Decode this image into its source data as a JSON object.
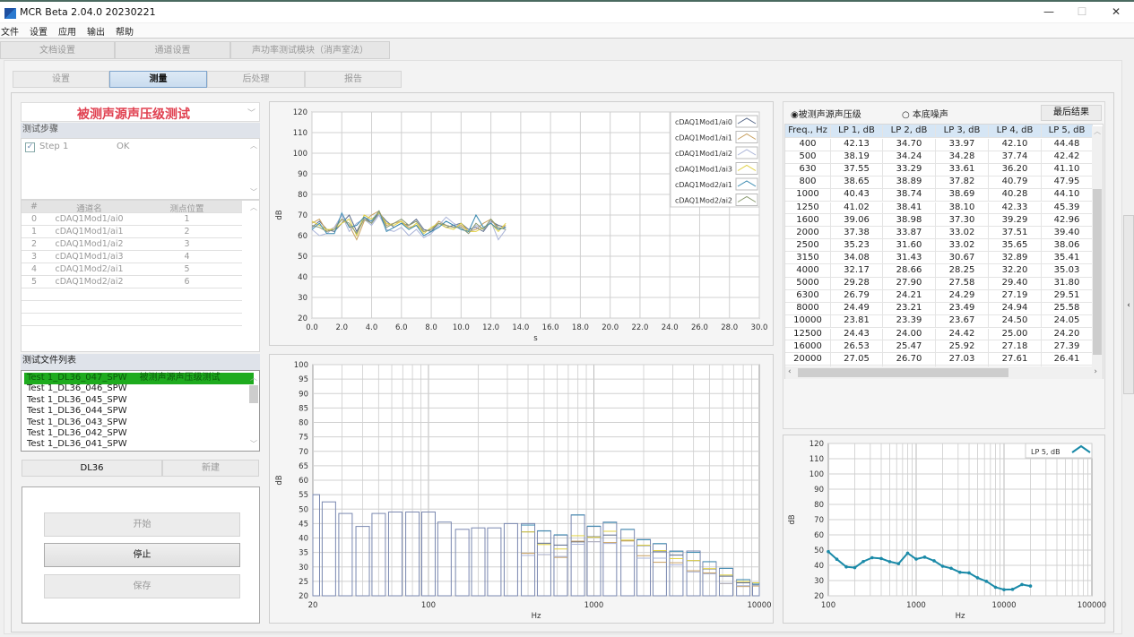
{
  "window": {
    "title": "MCR Beta 2.04.0 20230221",
    "minimize": "—",
    "maximize": "☐",
    "close": "✕"
  },
  "menu": [
    "文件",
    "设置",
    "应用",
    "输出",
    "帮助"
  ],
  "top_tabs": [
    "文档设置",
    "通道设置",
    "声功率测试模块（消声室法）"
  ],
  "sub_tabs": [
    {
      "label": "设置"
    },
    {
      "label": "测量",
      "selected": true
    },
    {
      "label": "后处理"
    },
    {
      "label": "报告"
    }
  ],
  "left": {
    "test_type": "被测声源声压级测试",
    "steps_header": "测试步骤",
    "steps": [
      {
        "name": "Step 1",
        "status": "OK",
        "checked": true
      }
    ],
    "channel_table": {
      "headers": [
        "#",
        "通道名",
        "测点位置"
      ],
      "rows": [
        [
          "0",
          "cDAQ1Mod1/ai0",
          "1"
        ],
        [
          "1",
          "cDAQ1Mod1/ai1",
          "2"
        ],
        [
          "2",
          "cDAQ1Mod1/ai2",
          "3"
        ],
        [
          "3",
          "cDAQ1Mod1/ai3",
          "4"
        ],
        [
          "4",
          "cDAQ1Mod2/ai1",
          "5"
        ],
        [
          "5",
          "cDAQ1Mod2/ai2",
          "6"
        ]
      ]
    },
    "files_header": "测试文件列表",
    "files": [
      {
        "name": "Test 1_DL36_047_SPW",
        "desc": "被测声源声压级测试",
        "selected": true
      },
      {
        "name": "Test 1_DL36_046_SPW"
      },
      {
        "name": "Test 1_DL36_045_SPW"
      },
      {
        "name": "Test 1_DL36_044_SPW"
      },
      {
        "name": "Test 1_DL36_043_SPW"
      },
      {
        "name": "Test 1_DL36_042_SPW"
      },
      {
        "name": "Test 1_DL36_041_SPW"
      }
    ],
    "project_button": "DL36",
    "new_button": "新建",
    "start_button": "开始",
    "stop_button": "停止",
    "save_button": "保存"
  },
  "right": {
    "radio_source": "被测声源声压级",
    "radio_background": "本底噪声",
    "radio_selected": "source",
    "final_button": "最后结果",
    "table": {
      "headers": [
        "Freq., Hz",
        "LP  1, dB",
        "LP  2, dB",
        "LP  3, dB",
        "LP  4, dB",
        "LP  5, dB"
      ],
      "rows": [
        [
          "400",
          "42.13",
          "34.70",
          "33.97",
          "42.10",
          "44.48"
        ],
        [
          "500",
          "38.19",
          "34.24",
          "34.28",
          "37.74",
          "42.42"
        ],
        [
          "630",
          "37.55",
          "33.29",
          "33.61",
          "36.20",
          "41.10"
        ],
        [
          "800",
          "38.65",
          "38.89",
          "37.82",
          "40.79",
          "47.95"
        ],
        [
          "1000",
          "40.43",
          "38.74",
          "38.69",
          "40.28",
          "44.10"
        ],
        [
          "1250",
          "41.02",
          "38.41",
          "38.10",
          "42.33",
          "45.39"
        ],
        [
          "1600",
          "39.06",
          "38.98",
          "37.30",
          "39.29",
          "42.96"
        ],
        [
          "2000",
          "37.38",
          "33.87",
          "33.02",
          "37.51",
          "39.40"
        ],
        [
          "2500",
          "35.23",
          "31.60",
          "33.02",
          "35.65",
          "38.06"
        ],
        [
          "3150",
          "34.08",
          "31.43",
          "30.67",
          "32.89",
          "35.41"
        ],
        [
          "4000",
          "32.17",
          "28.66",
          "28.25",
          "32.20",
          "35.03"
        ],
        [
          "5000",
          "29.28",
          "27.90",
          "27.58",
          "29.40",
          "31.80"
        ],
        [
          "6300",
          "26.79",
          "24.21",
          "24.29",
          "27.19",
          "29.51"
        ],
        [
          "8000",
          "24.49",
          "23.21",
          "23.49",
          "24.94",
          "25.58"
        ],
        [
          "10000",
          "23.81",
          "23.39",
          "23.67",
          "24.50",
          "24.05"
        ],
        [
          "12500",
          "24.43",
          "24.00",
          "24.42",
          "25.00",
          "24.20"
        ],
        [
          "16000",
          "26.53",
          "25.47",
          "25.92",
          "27.18",
          "27.39"
        ],
        [
          "20000",
          "27.05",
          "26.70",
          "27.03",
          "27.61",
          "26.41"
        ]
      ]
    }
  },
  "chart_data": [
    {
      "type": "line",
      "xlabel": "s",
      "ylabel": "dB",
      "xlim": [
        0,
        30
      ],
      "ylim": [
        20,
        120
      ],
      "xticks": [
        "0.0",
        "2.0",
        "4.0",
        "6.0",
        "8.0",
        "10.0",
        "12.0",
        "14.0",
        "16.0",
        "18.0",
        "20.0",
        "22.0",
        "24.0",
        "26.0",
        "28.0",
        "30.0"
      ],
      "yticks": [
        "20",
        "30",
        "40",
        "50",
        "60",
        "70",
        "80",
        "90",
        "100",
        "110",
        "120"
      ],
      "grid": true,
      "legend": "top-right",
      "x": [
        0,
        0.5,
        1,
        1.5,
        2,
        2.5,
        3,
        3.5,
        4,
        4.5,
        5,
        5.5,
        6,
        6.5,
        7,
        7.5,
        8,
        8.5,
        9,
        9.5,
        10,
        10.5,
        11,
        11.5,
        12,
        12.5,
        13
      ],
      "series": [
        {
          "name": "cDAQ1Mod1/ai0",
          "color": "#5a6a8a",
          "values": [
            64,
            67,
            63,
            62,
            66,
            70,
            62,
            69,
            66,
            71,
            67,
            64,
            66,
            65,
            68,
            63,
            62,
            66,
            64,
            65,
            66,
            63,
            64,
            62,
            67,
            65,
            64
          ]
        },
        {
          "name": "cDAQ1Mod1/ai1",
          "color": "#c8a060",
          "values": [
            66,
            68,
            62,
            64,
            68,
            65,
            58,
            67,
            70,
            72,
            65,
            66,
            67,
            64,
            65,
            62,
            63,
            67,
            65,
            64,
            65,
            62,
            63,
            66,
            68,
            63,
            65
          ]
        },
        {
          "name": "cDAQ1Mod1/ai2",
          "color": "#aab4d8",
          "values": [
            63,
            60,
            61,
            64,
            70,
            62,
            66,
            68,
            65,
            70,
            63,
            62,
            64,
            60,
            63,
            59,
            61,
            65,
            69,
            66,
            64,
            61,
            65,
            63,
            67,
            58,
            63
          ]
        },
        {
          "name": "cDAQ1Mod1/ai3",
          "color": "#e0d040",
          "values": [
            67,
            65,
            63,
            63,
            66,
            68,
            60,
            70,
            68,
            71,
            66,
            65,
            67,
            63,
            66,
            61,
            64,
            66,
            64,
            63,
            66,
            62,
            62,
            64,
            66,
            62,
            66
          ]
        },
        {
          "name": "cDAQ1Mod2/ai1",
          "color": "#3a8ab0",
          "values": [
            63,
            66,
            61,
            61,
            71,
            64,
            65,
            69,
            67,
            72,
            62,
            64,
            66,
            63,
            65,
            60,
            62,
            64,
            67,
            65,
            63,
            62,
            70,
            64,
            66,
            63,
            64
          ]
        },
        {
          "name": "cDAQ1Mod2/ai2",
          "color": "#8a9a70",
          "values": [
            65,
            64,
            62,
            63,
            68,
            66,
            61,
            68,
            66,
            72,
            64,
            66,
            68,
            65,
            67,
            62,
            63,
            66,
            65,
            64,
            64,
            61,
            66,
            63,
            68,
            64,
            63
          ]
        }
      ]
    },
    {
      "type": "bar",
      "xlabel": "Hz",
      "ylabel": "dB",
      "xscale": "log",
      "xlim": [
        20,
        10000
      ],
      "ylim": [
        20,
        100
      ],
      "xticks": [
        "20",
        "100",
        "1000",
        "10000"
      ],
      "yticks": [
        "20",
        "25",
        "30",
        "35",
        "40",
        "45",
        "50",
        "55",
        "60",
        "65",
        "70",
        "75",
        "80",
        "85",
        "90",
        "95",
        "100"
      ],
      "grid": true,
      "categories": [
        20,
        25,
        31.5,
        40,
        50,
        63,
        80,
        100,
        125,
        160,
        200,
        250,
        315,
        400,
        500,
        630,
        800,
        1000,
        1250,
        1600,
        2000,
        2500,
        3150,
        4000,
        5000,
        6300,
        8000,
        10000
      ],
      "max": [
        55,
        52.5,
        48.5,
        44,
        48.5,
        49,
        49,
        49,
        45.5,
        43,
        43.5,
        43.5,
        45,
        45,
        42.5,
        41,
        48,
        44,
        45.5,
        43,
        39.5,
        38,
        35.5,
        35.5,
        31.8,
        29.5,
        25.6,
        24.5
      ]
    },
    {
      "type": "line",
      "xlabel": "Hz",
      "ylabel": "dB",
      "xscale": "log",
      "xlim": [
        100,
        100000
      ],
      "ylim": [
        20,
        120
      ],
      "xticks": [
        "100",
        "1000",
        "10000",
        "100000"
      ],
      "yticks": [
        "20",
        "30",
        "40",
        "50",
        "60",
        "70",
        "80",
        "90",
        "100",
        "110",
        "120"
      ],
      "grid": true,
      "legend": "top-right",
      "series": [
        {
          "name": "LP  5, dB",
          "color": "#1a8aa8",
          "x": [
            100,
            125,
            160,
            200,
            250,
            315,
            400,
            500,
            630,
            800,
            1000,
            1250,
            1600,
            2000,
            2500,
            3150,
            4000,
            5000,
            6300,
            8000,
            10000,
            12500,
            16000,
            20000
          ],
          "values": [
            49,
            44,
            39,
            38.5,
            42.5,
            45,
            44.48,
            42.42,
            41.1,
            47.95,
            44.1,
            45.39,
            42.96,
            39.4,
            38.06,
            35.41,
            35.03,
            31.8,
            29.51,
            25.58,
            24.05,
            24.2,
            27.39,
            26.41
          ]
        }
      ]
    }
  ]
}
